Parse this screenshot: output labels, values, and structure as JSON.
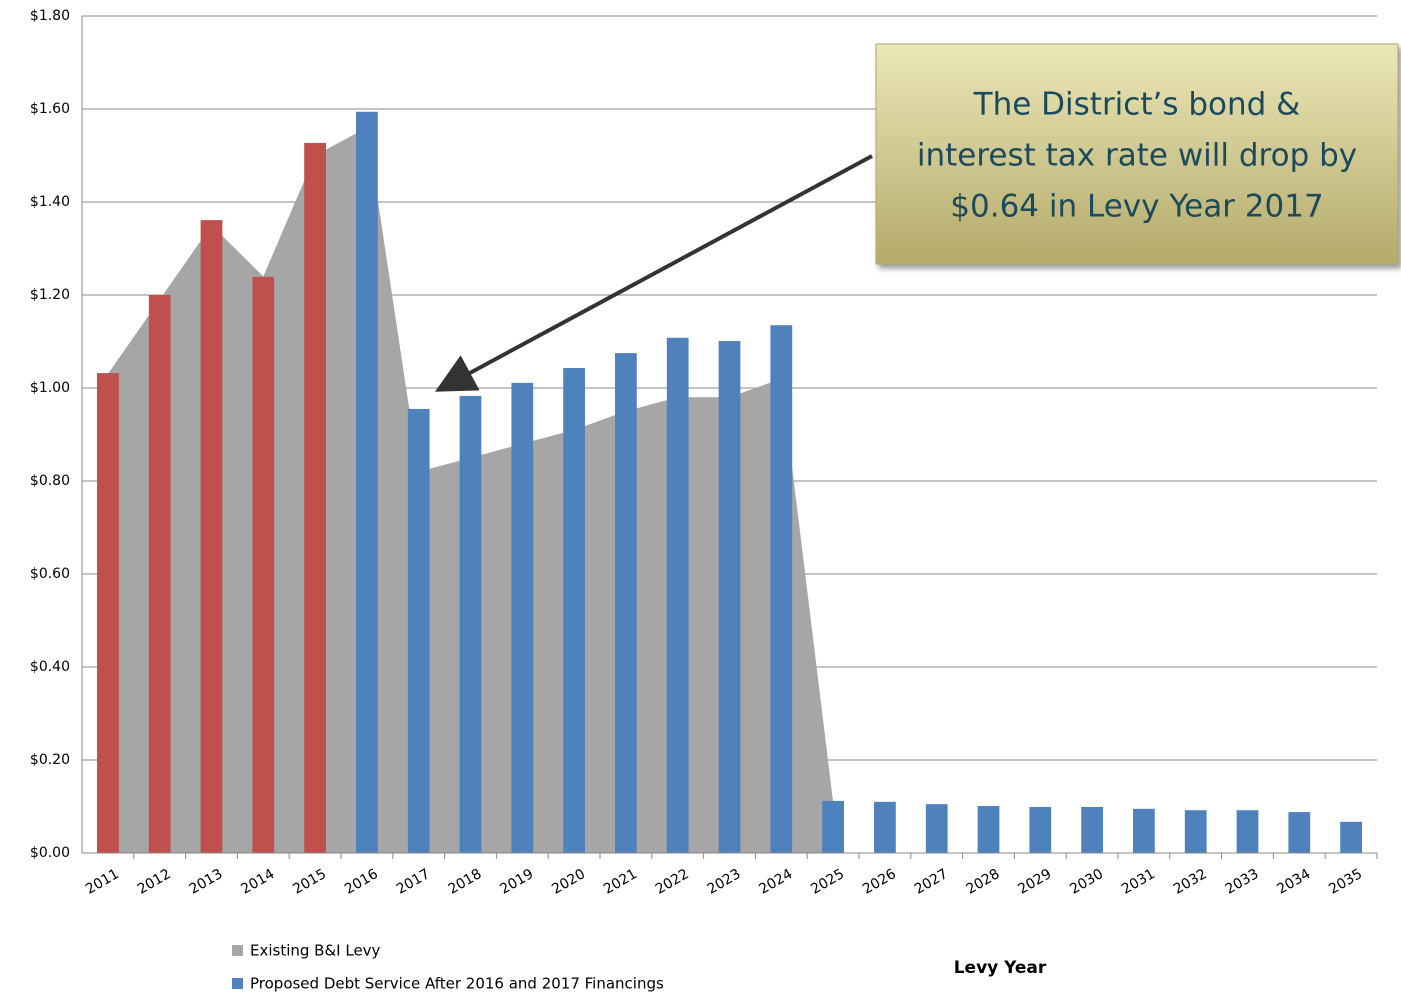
{
  "chart_data": {
    "type": "bar_area",
    "categories": [
      "2011",
      "2012",
      "2013",
      "2014",
      "2015",
      "2016",
      "2017",
      "2018",
      "2019",
      "2020",
      "2021",
      "2022",
      "2023",
      "2024",
      "2025",
      "2026",
      "2027",
      "2028",
      "2029",
      "2030",
      "2031",
      "2032",
      "2033",
      "2034",
      "2035"
    ],
    "series": [
      {
        "name": "Existing B&I Levy",
        "type": "area",
        "color": "#a6a6a6",
        "values": [
          1.03,
          1.19,
          1.35,
          1.24,
          1.5,
          1.56,
          0.82,
          0.85,
          0.88,
          0.91,
          0.95,
          0.98,
          0.98,
          1.02,
          0.11,
          null,
          null,
          null,
          null,
          null,
          null,
          null,
          null,
          null,
          null
        ]
      },
      {
        "name": "Proposed Debt Service After 2016 and 2017 Financings",
        "type": "bar",
        "color": "#4f81bd",
        "colors": [
          "#c0504d",
          "#c0504d",
          "#c0504d",
          "#c0504d",
          "#c0504d",
          "#4f81bd",
          "#4f81bd",
          "#4f81bd",
          "#4f81bd",
          "#4f81bd",
          "#4f81bd",
          "#4f81bd",
          "#4f81bd",
          "#4f81bd",
          "#4f81bd",
          "#4f81bd",
          "#4f81bd",
          "#4f81bd",
          "#4f81bd",
          "#4f81bd",
          "#4f81bd",
          "#4f81bd",
          "#4f81bd",
          "#4f81bd",
          "#4f81bd"
        ],
        "values": [
          1.032,
          1.2,
          1.361,
          1.239,
          1.527,
          1.594,
          0.955,
          0.983,
          1.011,
          1.043,
          1.075,
          1.108,
          1.101,
          1.135,
          0.112,
          0.11,
          0.105,
          0.101,
          0.099,
          0.099,
          0.095,
          0.092,
          0.092,
          0.088,
          0.067
        ]
      }
    ],
    "xlabel": "Levy Year",
    "ylim": [
      0,
      1.8
    ],
    "yticks": [
      {
        "value": 0,
        "label": "$0.00"
      },
      {
        "value": 0.2,
        "label": "$0.20"
      },
      {
        "value": 0.4,
        "label": "$0.40"
      },
      {
        "value": 0.6,
        "label": "$0.60"
      },
      {
        "value": 0.8,
        "label": "$0.80"
      },
      {
        "value": 1.0,
        "label": "$1.00"
      },
      {
        "value": 1.2,
        "label": "$1.20"
      },
      {
        "value": 1.4,
        "label": "$1.40"
      },
      {
        "value": 1.6,
        "label": "$1.60"
      },
      {
        "value": 1.8,
        "label": "$1.80"
      }
    ],
    "grid": true,
    "annotation": {
      "lines": [
        "The District’s bond &",
        "interest tax rate will drop by",
        "$0.64 in Levy Year 2017"
      ]
    }
  }
}
